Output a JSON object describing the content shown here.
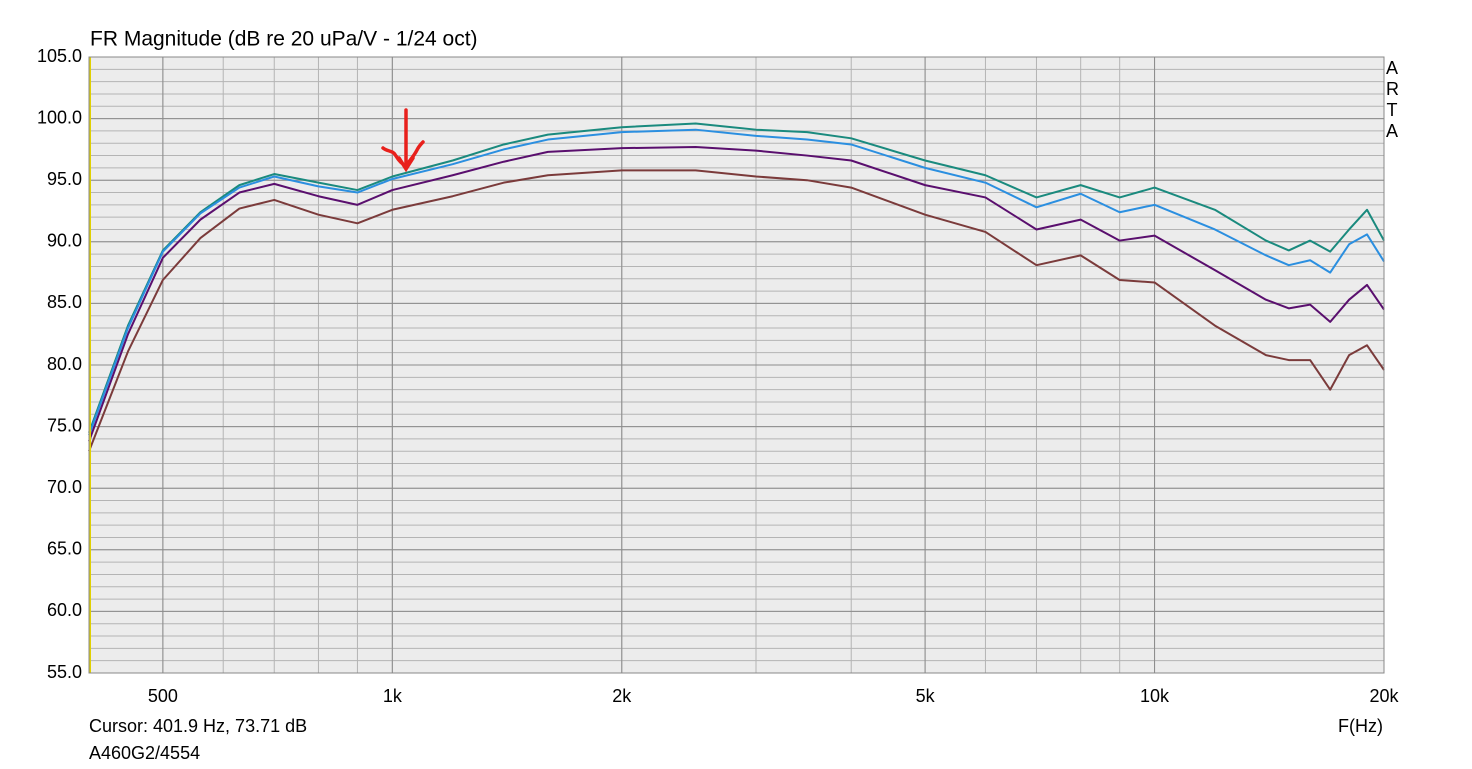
{
  "chart_data": {
    "type": "line",
    "title": "FR Magnitude (dB re 20 uPa/V - 1/24 oct)",
    "xlabel": "F(Hz)",
    "brand": "ARTA",
    "annotations": [
      "Cursor: 401.9 Hz, 73.71 dB",
      "A460G2/4554"
    ],
    "xscale": "log",
    "grid": true,
    "minor_grid": true,
    "xlim": [
      400,
      20000
    ],
    "ylim": [
      55,
      105
    ],
    "xticks": [
      {
        "value": 500,
        "label": "500"
      },
      {
        "value": 1000,
        "label": "1k"
      },
      {
        "value": 2000,
        "label": "2k"
      },
      {
        "value": 5000,
        "label": "5k"
      },
      {
        "value": 10000,
        "label": "10k"
      },
      {
        "value": 20000,
        "label": "20k"
      }
    ],
    "yticks": [
      {
        "value": 55,
        "label": "55.0"
      },
      {
        "value": 60,
        "label": "60.0"
      },
      {
        "value": 65,
        "label": "65.0"
      },
      {
        "value": 70,
        "label": "70.0"
      },
      {
        "value": 75,
        "label": "75.0"
      },
      {
        "value": 80,
        "label": "80.0"
      },
      {
        "value": 85,
        "label": "85.0"
      },
      {
        "value": 90,
        "label": "90.0"
      },
      {
        "value": 95,
        "label": "95.0"
      },
      {
        "value": 100,
        "label": "100.0"
      },
      {
        "value": 105,
        "label": "105.0"
      }
    ],
    "x": [
      400,
      450,
      500,
      560,
      630,
      700,
      800,
      900,
      1000,
      1200,
      1400,
      1600,
      2000,
      2500,
      3000,
      3500,
      4000,
      5000,
      6000,
      7000,
      8000,
      9000,
      10000,
      12000,
      14000,
      15000,
      16000,
      17000,
      18000,
      19000,
      20000
    ],
    "series": [
      {
        "color": "#1a8a7e",
        "values": [
          74.5,
          83.2,
          89.3,
          92.4,
          94.6,
          95.5,
          94.8,
          94.2,
          95.3,
          96.6,
          97.9,
          98.7,
          99.3,
          99.6,
          99.1,
          98.9,
          98.4,
          96.6,
          95.4,
          93.6,
          94.6,
          93.6,
          94.4,
          92.6,
          90.1,
          89.3,
          90.1,
          89.2,
          91.0,
          92.6,
          90.1
        ]
      },
      {
        "color": "#2b8fe0",
        "values": [
          74.3,
          83.0,
          89.2,
          92.3,
          94.4,
          95.3,
          94.5,
          94.0,
          95.1,
          96.3,
          97.5,
          98.3,
          98.9,
          99.1,
          98.6,
          98.3,
          97.9,
          96.0,
          94.8,
          92.8,
          93.9,
          92.4,
          93.0,
          91.0,
          88.9,
          88.1,
          88.5,
          87.5,
          89.8,
          90.6,
          88.4
        ]
      },
      {
        "color": "#5a0f6e",
        "values": [
          73.8,
          82.5,
          88.7,
          91.8,
          94.0,
          94.7,
          93.7,
          93.0,
          94.2,
          95.4,
          96.5,
          97.3,
          97.6,
          97.7,
          97.4,
          97.0,
          96.6,
          94.6,
          93.6,
          91.0,
          91.8,
          90.1,
          90.5,
          87.7,
          85.3,
          84.6,
          84.9,
          83.5,
          85.3,
          86.5,
          84.5
        ]
      },
      {
        "color": "#7b3b3b",
        "values": [
          73.0,
          81.1,
          86.9,
          90.3,
          92.7,
          93.4,
          92.2,
          91.5,
          92.6,
          93.7,
          94.8,
          95.4,
          95.8,
          95.8,
          95.3,
          95.0,
          94.4,
          92.2,
          90.8,
          88.1,
          88.9,
          86.9,
          86.7,
          83.2,
          80.8,
          80.4,
          80.4,
          78.0,
          80.8,
          81.6,
          79.6
        ]
      }
    ]
  }
}
